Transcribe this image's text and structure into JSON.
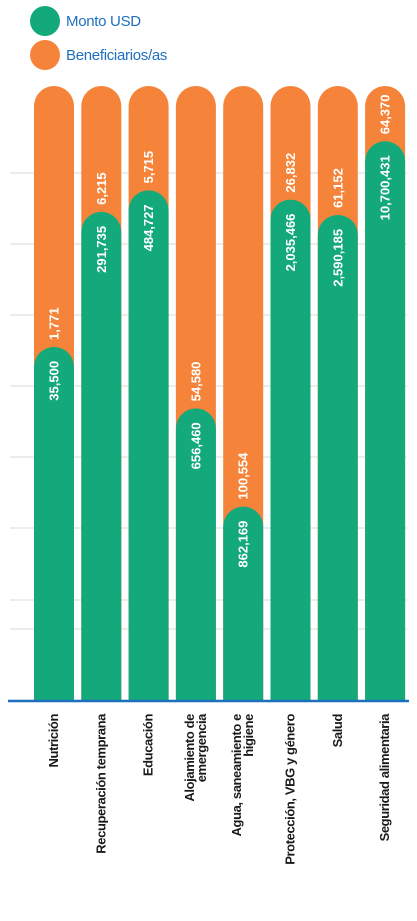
{
  "colors": {
    "monto": "#13a97b",
    "beneficiarios": "#f5843a",
    "baseline": "#1f6fbf",
    "grid": "#d9d9d9",
    "legend_text": "#1f6fbf"
  },
  "legend": [
    {
      "label": "Monto USD",
      "color": "#13a97b"
    },
    {
      "label": "Beneficiarios/as",
      "color": "#f5843a"
    }
  ],
  "chart_data": {
    "type": "bar",
    "stacked": true,
    "orientation": "vertical",
    "categories": [
      [
        "Nutrición"
      ],
      [
        "Recuperación temprana"
      ],
      [
        "Educación"
      ],
      [
        "Alojamiento de",
        "emergencia"
      ],
      [
        "Agua, saneamiento e",
        "higiene"
      ],
      [
        "Protección, VBG y género"
      ],
      [
        "Salud"
      ],
      [
        "Seguridad alimentaria"
      ]
    ],
    "series": [
      {
        "name": "Monto USD",
        "values": [
          "35,500",
          "291,735",
          "484,727",
          "656,460",
          "862,169",
          "2,035,466",
          "2,590,185",
          "10,700,431"
        ],
        "share": [
          0.575,
          0.795,
          0.83,
          0.475,
          0.315,
          0.815,
          0.79,
          0.91
        ]
      },
      {
        "name": "Beneficiarios/as",
        "values": [
          "1,771",
          "6,215",
          "5,715",
          "54,580",
          "100,554",
          "26,832",
          "61,152",
          "64,370"
        ]
      }
    ],
    "legend_position": "top-left",
    "grid": true
  }
}
